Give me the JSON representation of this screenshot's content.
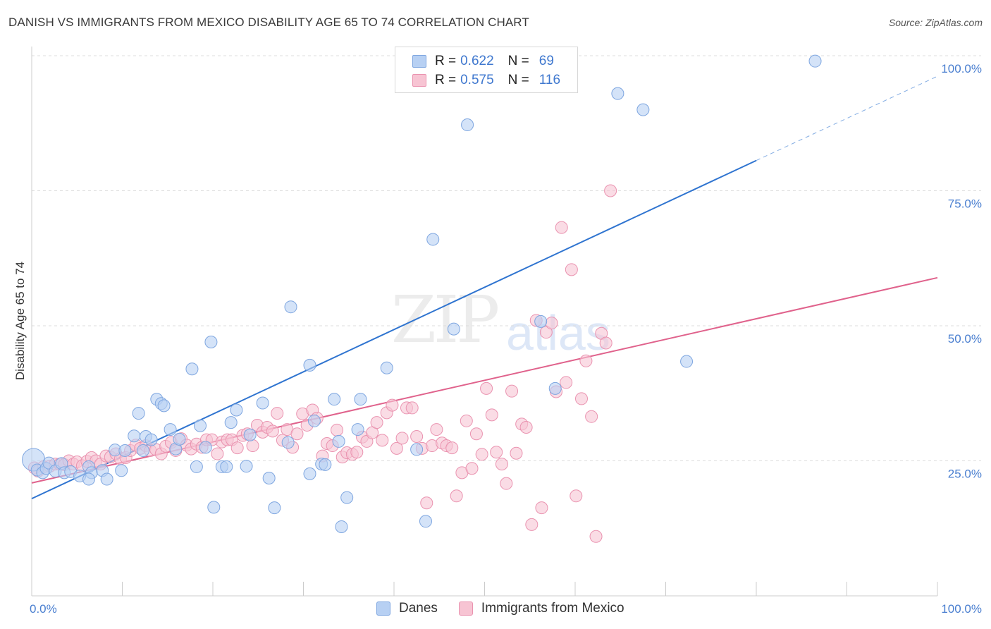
{
  "title": "DANISH VS IMMIGRANTS FROM MEXICO DISABILITY AGE 65 TO 74 CORRELATION CHART",
  "source": "Source: ZipAtlas.com",
  "watermark": {
    "zip": "ZIP",
    "atlas": "atlas"
  },
  "colors": {
    "danes_fill": "#b7d0f3",
    "danes_stroke": "#7ea6e0",
    "danes_line": "#2f74d0",
    "mexico_fill": "#f7c4d3",
    "mexico_stroke": "#ea93b0",
    "mexico_line": "#e0628c",
    "grid": "#dddddd",
    "tick_label": "#4a7fd0"
  },
  "legend": {
    "rows": [
      {
        "r_label": "R =",
        "r_value": "0.622",
        "n_label": "N =",
        "n_value": "69"
      },
      {
        "r_label": "R =",
        "r_value": "0.575",
        "n_label": "N =",
        "n_value": "116"
      }
    ]
  },
  "bottom_legend": {
    "danes": "Danes",
    "mexico": "Immigrants from Mexico"
  },
  "chart_data": {
    "type": "scatter",
    "title": "DANISH VS IMMIGRANTS FROM MEXICO DISABILITY AGE 65 TO 74 CORRELATION CHART",
    "xlabel": "",
    "ylabel": "Disability Age 65 to 74",
    "xlim": [
      0,
      100
    ],
    "ylim": [
      0,
      100
    ],
    "x_tick_labels": [
      "0.0%",
      "100.0%"
    ],
    "y_tick_labels": [
      "25.0%",
      "50.0%",
      "75.0%",
      "100.0%"
    ],
    "y_tick_values": [
      25,
      50,
      75,
      100
    ],
    "grid": true,
    "legend_position": "top-center",
    "series": [
      {
        "name": "Danes",
        "R": 0.622,
        "N": 69,
        "trend": {
          "x": [
            0,
            80
          ],
          "y": [
            18.0,
            80.6
          ],
          "dashed_extension_to": [
            100,
            96.2
          ]
        },
        "points": [
          [
            0.2,
            25.2
          ],
          [
            0.6,
            23.3
          ],
          [
            1.2,
            22.8
          ],
          [
            1.6,
            23.6
          ],
          [
            1.9,
            24.6
          ],
          [
            2.6,
            23.1
          ],
          [
            3.3,
            24.5
          ],
          [
            3.6,
            22.8
          ],
          [
            4.3,
            23.0
          ],
          [
            5.3,
            22.2
          ],
          [
            6.3,
            23.9
          ],
          [
            6.6,
            22.8
          ],
          [
            6.3,
            21.6
          ],
          [
            7.8,
            23.2
          ],
          [
            8.3,
            21.6
          ],
          [
            9.2,
            27.0
          ],
          [
            9.9,
            23.2
          ],
          [
            10.3,
            26.9
          ],
          [
            11.3,
            29.6
          ],
          [
            11.8,
            33.8
          ],
          [
            12.3,
            26.9
          ],
          [
            12.6,
            29.5
          ],
          [
            13.2,
            28.9
          ],
          [
            13.8,
            36.4
          ],
          [
            14.3,
            35.6
          ],
          [
            14.6,
            35.2
          ],
          [
            15.3,
            30.8
          ],
          [
            15.9,
            27.2
          ],
          [
            16.3,
            29.0
          ],
          [
            17.7,
            42.0
          ],
          [
            18.2,
            23.9
          ],
          [
            18.6,
            31.5
          ],
          [
            19.2,
            27.5
          ],
          [
            19.8,
            47.0
          ],
          [
            20.1,
            16.4
          ],
          [
            21.0,
            23.9
          ],
          [
            21.5,
            23.9
          ],
          [
            22.0,
            32.1
          ],
          [
            22.6,
            34.4
          ],
          [
            23.7,
            24.0
          ],
          [
            24.1,
            29.8
          ],
          [
            25.5,
            35.7
          ],
          [
            26.2,
            21.8
          ],
          [
            26.8,
            16.3
          ],
          [
            28.3,
            28.4
          ],
          [
            28.6,
            53.5
          ],
          [
            30.7,
            42.7
          ],
          [
            30.7,
            22.6
          ],
          [
            31.2,
            32.4
          ],
          [
            32.0,
            24.4
          ],
          [
            32.4,
            24.3
          ],
          [
            33.4,
            36.4
          ],
          [
            33.9,
            28.6
          ],
          [
            34.2,
            12.8
          ],
          [
            34.8,
            18.2
          ],
          [
            36.0,
            30.8
          ],
          [
            36.3,
            36.4
          ],
          [
            39.2,
            42.2
          ],
          [
            42.5,
            27.1
          ],
          [
            43.5,
            13.8
          ],
          [
            44.3,
            66.0
          ],
          [
            46.6,
            49.4
          ],
          [
            48.1,
            87.2
          ],
          [
            56.2,
            50.8
          ],
          [
            57.8,
            38.4
          ],
          [
            64.7,
            93.0
          ],
          [
            67.5,
            90.0
          ],
          [
            72.3,
            43.4
          ],
          [
            86.5,
            99.0
          ]
        ]
      },
      {
        "name": "Immigrants from Mexico",
        "R": 0.575,
        "N": 116,
        "trend": {
          "x": [
            0,
            100
          ],
          "y": [
            20.9,
            58.9
          ]
        },
        "points": [
          [
            0.3,
            23.7
          ],
          [
            0.7,
            23.1
          ],
          [
            1.3,
            23.9
          ],
          [
            2.0,
            24.0
          ],
          [
            2.6,
            24.4
          ],
          [
            3.1,
            24.4
          ],
          [
            3.6,
            24.3
          ],
          [
            4.1,
            25.0
          ],
          [
            4.6,
            24.4
          ],
          [
            5.0,
            24.8
          ],
          [
            5.6,
            24.1
          ],
          [
            6.1,
            24.9
          ],
          [
            6.6,
            25.6
          ],
          [
            7.1,
            25.0
          ],
          [
            7.6,
            24.4
          ],
          [
            8.2,
            25.9
          ],
          [
            8.7,
            25.7
          ],
          [
            9.3,
            26.3
          ],
          [
            9.8,
            25.4
          ],
          [
            10.4,
            25.6
          ],
          [
            10.9,
            26.9
          ],
          [
            11.5,
            27.9
          ],
          [
            12.0,
            27.3
          ],
          [
            12.6,
            27.8
          ],
          [
            13.1,
            26.9
          ],
          [
            13.7,
            27.1
          ],
          [
            14.3,
            26.3
          ],
          [
            14.8,
            27.7
          ],
          [
            15.4,
            28.4
          ],
          [
            15.9,
            26.9
          ],
          [
            16.5,
            29.1
          ],
          [
            17.1,
            27.9
          ],
          [
            17.6,
            27.2
          ],
          [
            18.2,
            28.1
          ],
          [
            18.8,
            27.5
          ],
          [
            19.3,
            28.9
          ],
          [
            19.9,
            28.9
          ],
          [
            20.5,
            26.3
          ],
          [
            21.0,
            28.5
          ],
          [
            21.6,
            28.9
          ],
          [
            22.1,
            28.9
          ],
          [
            22.7,
            27.4
          ],
          [
            23.3,
            29.7
          ],
          [
            23.8,
            30.0
          ],
          [
            24.4,
            27.8
          ],
          [
            24.9,
            31.6
          ],
          [
            25.5,
            30.3
          ],
          [
            26.0,
            31.2
          ],
          [
            26.6,
            30.5
          ],
          [
            27.1,
            33.8
          ],
          [
            27.7,
            28.8
          ],
          [
            28.2,
            30.8
          ],
          [
            28.8,
            27.5
          ],
          [
            29.3,
            30.0
          ],
          [
            29.9,
            33.7
          ],
          [
            30.4,
            31.6
          ],
          [
            31.0,
            34.4
          ],
          [
            31.5,
            32.9
          ],
          [
            32.1,
            25.9
          ],
          [
            32.6,
            28.2
          ],
          [
            33.2,
            27.8
          ],
          [
            33.7,
            30.7
          ],
          [
            34.3,
            25.7
          ],
          [
            34.8,
            26.5
          ],
          [
            35.4,
            26.2
          ],
          [
            35.9,
            26.6
          ],
          [
            36.5,
            29.4
          ],
          [
            37.0,
            28.6
          ],
          [
            37.6,
            30.2
          ],
          [
            38.1,
            32.1
          ],
          [
            38.7,
            28.8
          ],
          [
            39.2,
            33.9
          ],
          [
            39.8,
            35.3
          ],
          [
            40.3,
            27.3
          ],
          [
            40.9,
            29.2
          ],
          [
            41.4,
            34.8
          ],
          [
            42.0,
            34.8
          ],
          [
            42.5,
            29.5
          ],
          [
            43.1,
            27.3
          ],
          [
            43.6,
            17.2
          ],
          [
            44.2,
            27.8
          ],
          [
            44.7,
            30.8
          ],
          [
            45.3,
            28.3
          ],
          [
            45.8,
            27.8
          ],
          [
            46.4,
            27.4
          ],
          [
            46.9,
            18.5
          ],
          [
            47.5,
            22.8
          ],
          [
            48.0,
            32.4
          ],
          [
            48.6,
            23.6
          ],
          [
            49.1,
            30.0
          ],
          [
            49.7,
            26.2
          ],
          [
            50.2,
            38.4
          ],
          [
            50.8,
            33.5
          ],
          [
            51.3,
            26.6
          ],
          [
            51.9,
            24.4
          ],
          [
            52.4,
            20.8
          ],
          [
            53.0,
            37.9
          ],
          [
            53.5,
            26.4
          ],
          [
            54.1,
            31.8
          ],
          [
            54.6,
            31.2
          ],
          [
            55.2,
            13.2
          ],
          [
            55.7,
            51.0
          ],
          [
            56.3,
            16.3
          ],
          [
            56.8,
            48.8
          ],
          [
            57.4,
            50.5
          ],
          [
            57.9,
            37.8
          ],
          [
            58.5,
            68.2
          ],
          [
            59.0,
            39.5
          ],
          [
            59.6,
            60.4
          ],
          [
            60.1,
            18.5
          ],
          [
            60.7,
            36.5
          ],
          [
            61.2,
            43.5
          ],
          [
            61.8,
            33.2
          ],
          [
            62.3,
            11.0
          ],
          [
            62.9,
            48.6
          ],
          [
            63.4,
            46.8
          ],
          [
            63.9,
            75.0
          ]
        ]
      }
    ]
  }
}
